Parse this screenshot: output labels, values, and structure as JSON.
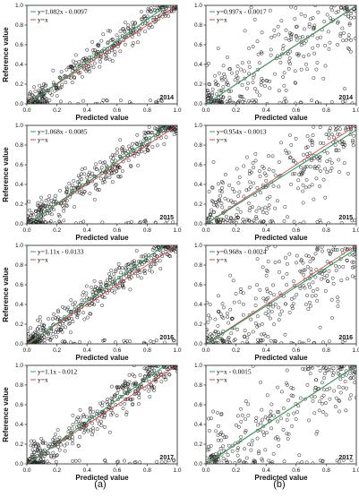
{
  "figure": {
    "captions": [
      "(a)",
      "(b)"
    ]
  },
  "colors": {
    "fit_line": "#2ca25f",
    "identity_line": "#e0434a",
    "points": "#222222"
  },
  "chart_data": [
    {
      "type": "scatter",
      "panel": "a-2014",
      "year_label": "2014",
      "xlabel": "Predicted value",
      "ylabel": "Reference value",
      "xlim": [
        0,
        1
      ],
      "ylim": [
        0,
        1
      ],
      "xticks": [
        "0.0",
        "0.2",
        "0.4",
        "0.6",
        "0.8",
        "1.0"
      ],
      "yticks": [
        "0.0",
        "0.2",
        "0.4",
        "0.6",
        "0.8",
        "1.0"
      ],
      "fit": {
        "slope": 1.082,
        "intercept": -0.0097,
        "label": "y=1.082x - 0.0097"
      },
      "identity_label": "y=x",
      "spread": 0.07,
      "n": 380,
      "seed": 11
    },
    {
      "type": "scatter",
      "panel": "b-2014",
      "year_label": "2014",
      "xlabel": "Predicted value",
      "ylabel": "",
      "xlim": [
        0,
        1
      ],
      "ylim": [
        0,
        1
      ],
      "xticks": [
        "0.0",
        "0.2",
        "0.4",
        "0.6",
        "0.8",
        "1.0"
      ],
      "yticks": [
        "0.0",
        "0.2",
        "0.4",
        "0.6",
        "0.8",
        "1.0"
      ],
      "fit": {
        "slope": 0.997,
        "intercept": -0.0017,
        "label": "y=0.997x - 0.0017"
      },
      "identity_label": "y=x",
      "spread": 0.22,
      "n": 300,
      "seed": 21
    },
    {
      "type": "scatter",
      "panel": "a-2015",
      "year_label": "2015",
      "xlabel": "Predicted value",
      "ylabel": "Reference value",
      "xlim": [
        0,
        1
      ],
      "ylim": [
        0,
        1
      ],
      "xticks": [
        "0.0",
        "0.2",
        "0.4",
        "0.6",
        "0.8",
        "1.0"
      ],
      "yticks": [
        "0.0",
        "0.2",
        "0.4",
        "0.6",
        "0.8",
        "1.0"
      ],
      "fit": {
        "slope": 1.068,
        "intercept": -0.0085,
        "label": "y=1.068x - 0.0085"
      },
      "identity_label": "y=x",
      "spread": 0.08,
      "n": 400,
      "seed": 12
    },
    {
      "type": "scatter",
      "panel": "b-2015",
      "year_label": "2015",
      "xlabel": "Predicted value",
      "ylabel": "",
      "xlim": [
        0,
        1
      ],
      "ylim": [
        0,
        1
      ],
      "xticks": [
        "0.0",
        "0.2",
        "0.4",
        "0.6",
        "0.8",
        "1.0"
      ],
      "yticks": [
        "0.0",
        "0.2",
        "0.4",
        "0.6",
        "0.8",
        "1.0"
      ],
      "fit": {
        "slope": 0.954,
        "intercept": -0.0013,
        "label": "y=0.954x - 0.0013"
      },
      "identity_label": "y=x",
      "spread": 0.22,
      "n": 300,
      "seed": 22
    },
    {
      "type": "scatter",
      "panel": "a-2016",
      "year_label": "2016",
      "xlabel": "Predicted value",
      "ylabel": "Reference value",
      "xlim": [
        0,
        1
      ],
      "ylim": [
        0,
        1
      ],
      "xticks": [
        "0.0",
        "0.2",
        "0.4",
        "0.6",
        "0.8",
        "1.0"
      ],
      "yticks": [
        "0.0",
        "0.2",
        "0.4",
        "0.6",
        "0.8",
        "1.0"
      ],
      "fit": {
        "slope": 1.11,
        "intercept": -0.0133,
        "label": "y=1.11x - 0.0133"
      },
      "identity_label": "y=x",
      "spread": 0.08,
      "n": 420,
      "seed": 13
    },
    {
      "type": "scatter",
      "panel": "b-2016",
      "year_label": "2016",
      "xlabel": "Predicted value",
      "ylabel": "",
      "xlim": [
        0,
        1
      ],
      "ylim": [
        0,
        1
      ],
      "xticks": [
        "0.0",
        "0.2",
        "0.4",
        "0.6",
        "0.8",
        "1.0"
      ],
      "yticks": [
        "0.0",
        "0.2",
        "0.4",
        "0.6",
        "0.8",
        "1.0"
      ],
      "fit": {
        "slope": 0.968,
        "intercept": -0.0024,
        "label": "y=0.968x - 0.0024"
      },
      "identity_label": "y=x",
      "spread": 0.23,
      "n": 300,
      "seed": 23
    },
    {
      "type": "scatter",
      "panel": "a-2017",
      "year_label": "2017",
      "xlabel": "Predicted value",
      "ylabel": "Reference value",
      "xlim": [
        0,
        1
      ],
      "ylim": [
        0,
        1
      ],
      "xticks": [
        "0.0",
        "0.2",
        "0.4",
        "0.6",
        "0.8",
        "1.0"
      ],
      "yticks": [
        "0.0",
        "0.2",
        "0.4",
        "0.6",
        "0.8",
        "1.0"
      ],
      "fit": {
        "slope": 1.1,
        "intercept": -0.012,
        "label": "y=1.1x - 0.012"
      },
      "identity_label": "y=x",
      "spread": 0.08,
      "n": 420,
      "seed": 14
    },
    {
      "type": "scatter",
      "panel": "b-2017",
      "year_label": "2017",
      "xlabel": "Predicted value",
      "ylabel": "",
      "xlim": [
        0,
        1
      ],
      "ylim": [
        0,
        1
      ],
      "xticks": [
        "0.0",
        "0.2",
        "0.4",
        "0.6",
        "0.8",
        "1.0"
      ],
      "yticks": [
        "0.0",
        "0.2",
        "0.4",
        "0.6",
        "0.8",
        "1.0"
      ],
      "fit": {
        "slope": 1.0,
        "intercept": -0.0015,
        "label": "y=x - 0.0015"
      },
      "identity_label": "y=x",
      "spread": 0.22,
      "n": 280,
      "seed": 24
    }
  ]
}
